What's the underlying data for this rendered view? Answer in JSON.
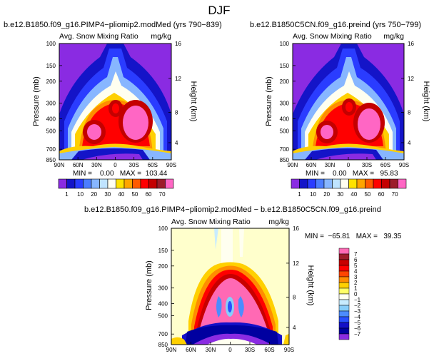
{
  "figure_title": "DJF",
  "chart_data": [
    {
      "type": "heatmap",
      "title": "b.e12.B1850.f09_g16.PIMP4−pliomip2.modMed (yrs 790−839)",
      "subtitle_left": "Avg. Snow Mixing Ratio",
      "subtitle_right": "mg/kg",
      "ylabel": "Pressure (mb)",
      "ylabel_right": "Height (km)",
      "x_ticks": [
        "90N",
        "60N",
        "30N",
        "0",
        "30S",
        "60S",
        "90S"
      ],
      "y_ticks": [
        "100",
        "150",
        "200",
        "300",
        "400",
        "500",
        "700",
        "850"
      ],
      "y_ticks_right": [
        "16",
        "12",
        "8",
        "4"
      ],
      "stats": {
        "min": "0.00",
        "max": "103.44",
        "text": "MIN =    0.00   MAX =  103.44"
      },
      "colorbar_labels": [
        "1",
        "10",
        "20",
        "30",
        "40",
        "50",
        "60",
        "70"
      ]
    },
    {
      "type": "heatmap",
      "title": "b.e12.B1850C5CN.f09_g16.preind (yrs 750−799)",
      "subtitle_left": "Avg. Snow Mixing Ratio",
      "subtitle_right": "mg/kg",
      "ylabel": "Pressure (mb)",
      "ylabel_right": "Height (km)",
      "x_ticks": [
        "90N",
        "60N",
        "30N",
        "0",
        "30S",
        "60S",
        "90S"
      ],
      "y_ticks": [
        "100",
        "150",
        "200",
        "300",
        "400",
        "500",
        "700",
        "850"
      ],
      "y_ticks_right": [
        "16",
        "12",
        "8",
        "4"
      ],
      "stats": {
        "min": "0.00",
        "max": "95.83",
        "text": "MIN =    0.00   MAX =   95.83"
      },
      "colorbar_labels": [
        "1",
        "10",
        "20",
        "30",
        "40",
        "50",
        "60",
        "70"
      ]
    },
    {
      "type": "heatmap",
      "title": "b.e12.B1850.f09_g16.PIMP4−pliomip2.modMed − b.e12.B1850C5CN.f09_g16.preind",
      "subtitle_left": "Avg. Snow Mixing Ratio",
      "subtitle_right": "mg/kg",
      "ylabel": "Pressure (mb)",
      "ylabel_right": "Height (km)",
      "x_ticks": [
        "90N",
        "60N",
        "30N",
        "0",
        "30S",
        "60S",
        "90S"
      ],
      "y_ticks": [
        "100",
        "150",
        "200",
        "300",
        "400",
        "500",
        "700",
        "850"
      ],
      "y_ticks_right": [
        "16",
        "12",
        "8",
        "4"
      ],
      "stats": {
        "min": "-65.81",
        "max": "39.35",
        "text": "MIN =  −65.81   MAX =   39.35"
      },
      "colorbar_labels": [
        "7",
        "6",
        "5",
        "4",
        "3",
        "2",
        "1",
        "0",
        "−1",
        "−2",
        "−3",
        "−4",
        "−5",
        "−6",
        "−7"
      ]
    }
  ],
  "colors": {
    "abs_scale": [
      "#8a2be2",
      "#1414c8",
      "#2a3cff",
      "#4c7dff",
      "#87b6ff",
      "#bfe4ff",
      "#fffff0",
      "#ffe200",
      "#ffa500",
      "#ff5a00",
      "#ff0000",
      "#c40000",
      "#9c1c2a",
      "#ff66c4"
    ],
    "diff_scale": [
      "#ff69b4",
      "#9c1c2a",
      "#c80000",
      "#ff0000",
      "#ff4500",
      "#ff8c00",
      "#ffd000",
      "#ffff66",
      "#fffff0",
      "#c8ecff",
      "#87cefa",
      "#4c8cff",
      "#2850ff",
      "#1410c8",
      "#0000a0",
      "#8a2be2"
    ]
  }
}
